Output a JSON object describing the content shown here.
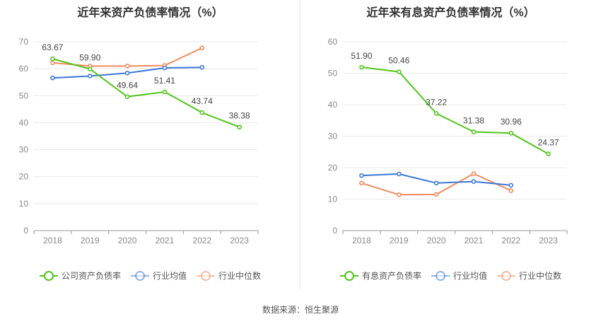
{
  "chart_data": [
    {
      "type": "line",
      "title": "近年来资产负债率情况（%）",
      "categories": [
        "2018",
        "2019",
        "2020",
        "2021",
        "2022",
        "2023"
      ],
      "ylim": [
        0,
        70
      ],
      "yticks": [
        0,
        10,
        20,
        30,
        40,
        50,
        60,
        70
      ],
      "grid": true,
      "legend": "bottom",
      "series": [
        {
          "name": "公司资产负债率",
          "color": "#52c41a",
          "labels": true,
          "values": [
            63.67,
            59.9,
            49.64,
            51.41,
            43.74,
            38.38
          ],
          "value_labels": [
            "63.67",
            "59.90",
            "49.64",
            "51.41",
            "43.74",
            "38.38"
          ]
        },
        {
          "name": "行业均值",
          "color": "#3a78d8",
          "labels": false,
          "values": [
            56.6,
            57.3,
            58.4,
            60.3,
            60.5,
            null
          ]
        },
        {
          "name": "行业中位数",
          "color": "#f08a5d",
          "labels": false,
          "values": [
            62.2,
            61.0,
            61.0,
            61.2,
            67.7,
            null
          ]
        }
      ]
    },
    {
      "type": "line",
      "title": "近年来有息资产负债率情况（%）",
      "categories": [
        "2018",
        "2019",
        "2020",
        "2021",
        "2022",
        "2023"
      ],
      "ylim": [
        0,
        60
      ],
      "yticks": [
        0,
        10,
        20,
        30,
        40,
        50,
        60
      ],
      "grid": true,
      "legend": "bottom",
      "series": [
        {
          "name": "有息资产负债率",
          "color": "#52c41a",
          "labels": true,
          "values": [
            51.9,
            50.46,
            37.22,
            31.38,
            30.96,
            24.37
          ],
          "value_labels": [
            "51.90",
            "50.46",
            "37.22",
            "31.38",
            "30.96",
            "24.37"
          ]
        },
        {
          "name": "行业均值",
          "color": "#3a78d8",
          "labels": false,
          "values": [
            17.5,
            18.0,
            15.1,
            15.6,
            14.4,
            null
          ]
        },
        {
          "name": "行业中位数",
          "color": "#f08a5d",
          "labels": false,
          "values": [
            15.1,
            11.4,
            11.5,
            18.1,
            12.7,
            null
          ]
        }
      ]
    }
  ],
  "footer": {
    "source": "数据来源：恒生聚源"
  }
}
